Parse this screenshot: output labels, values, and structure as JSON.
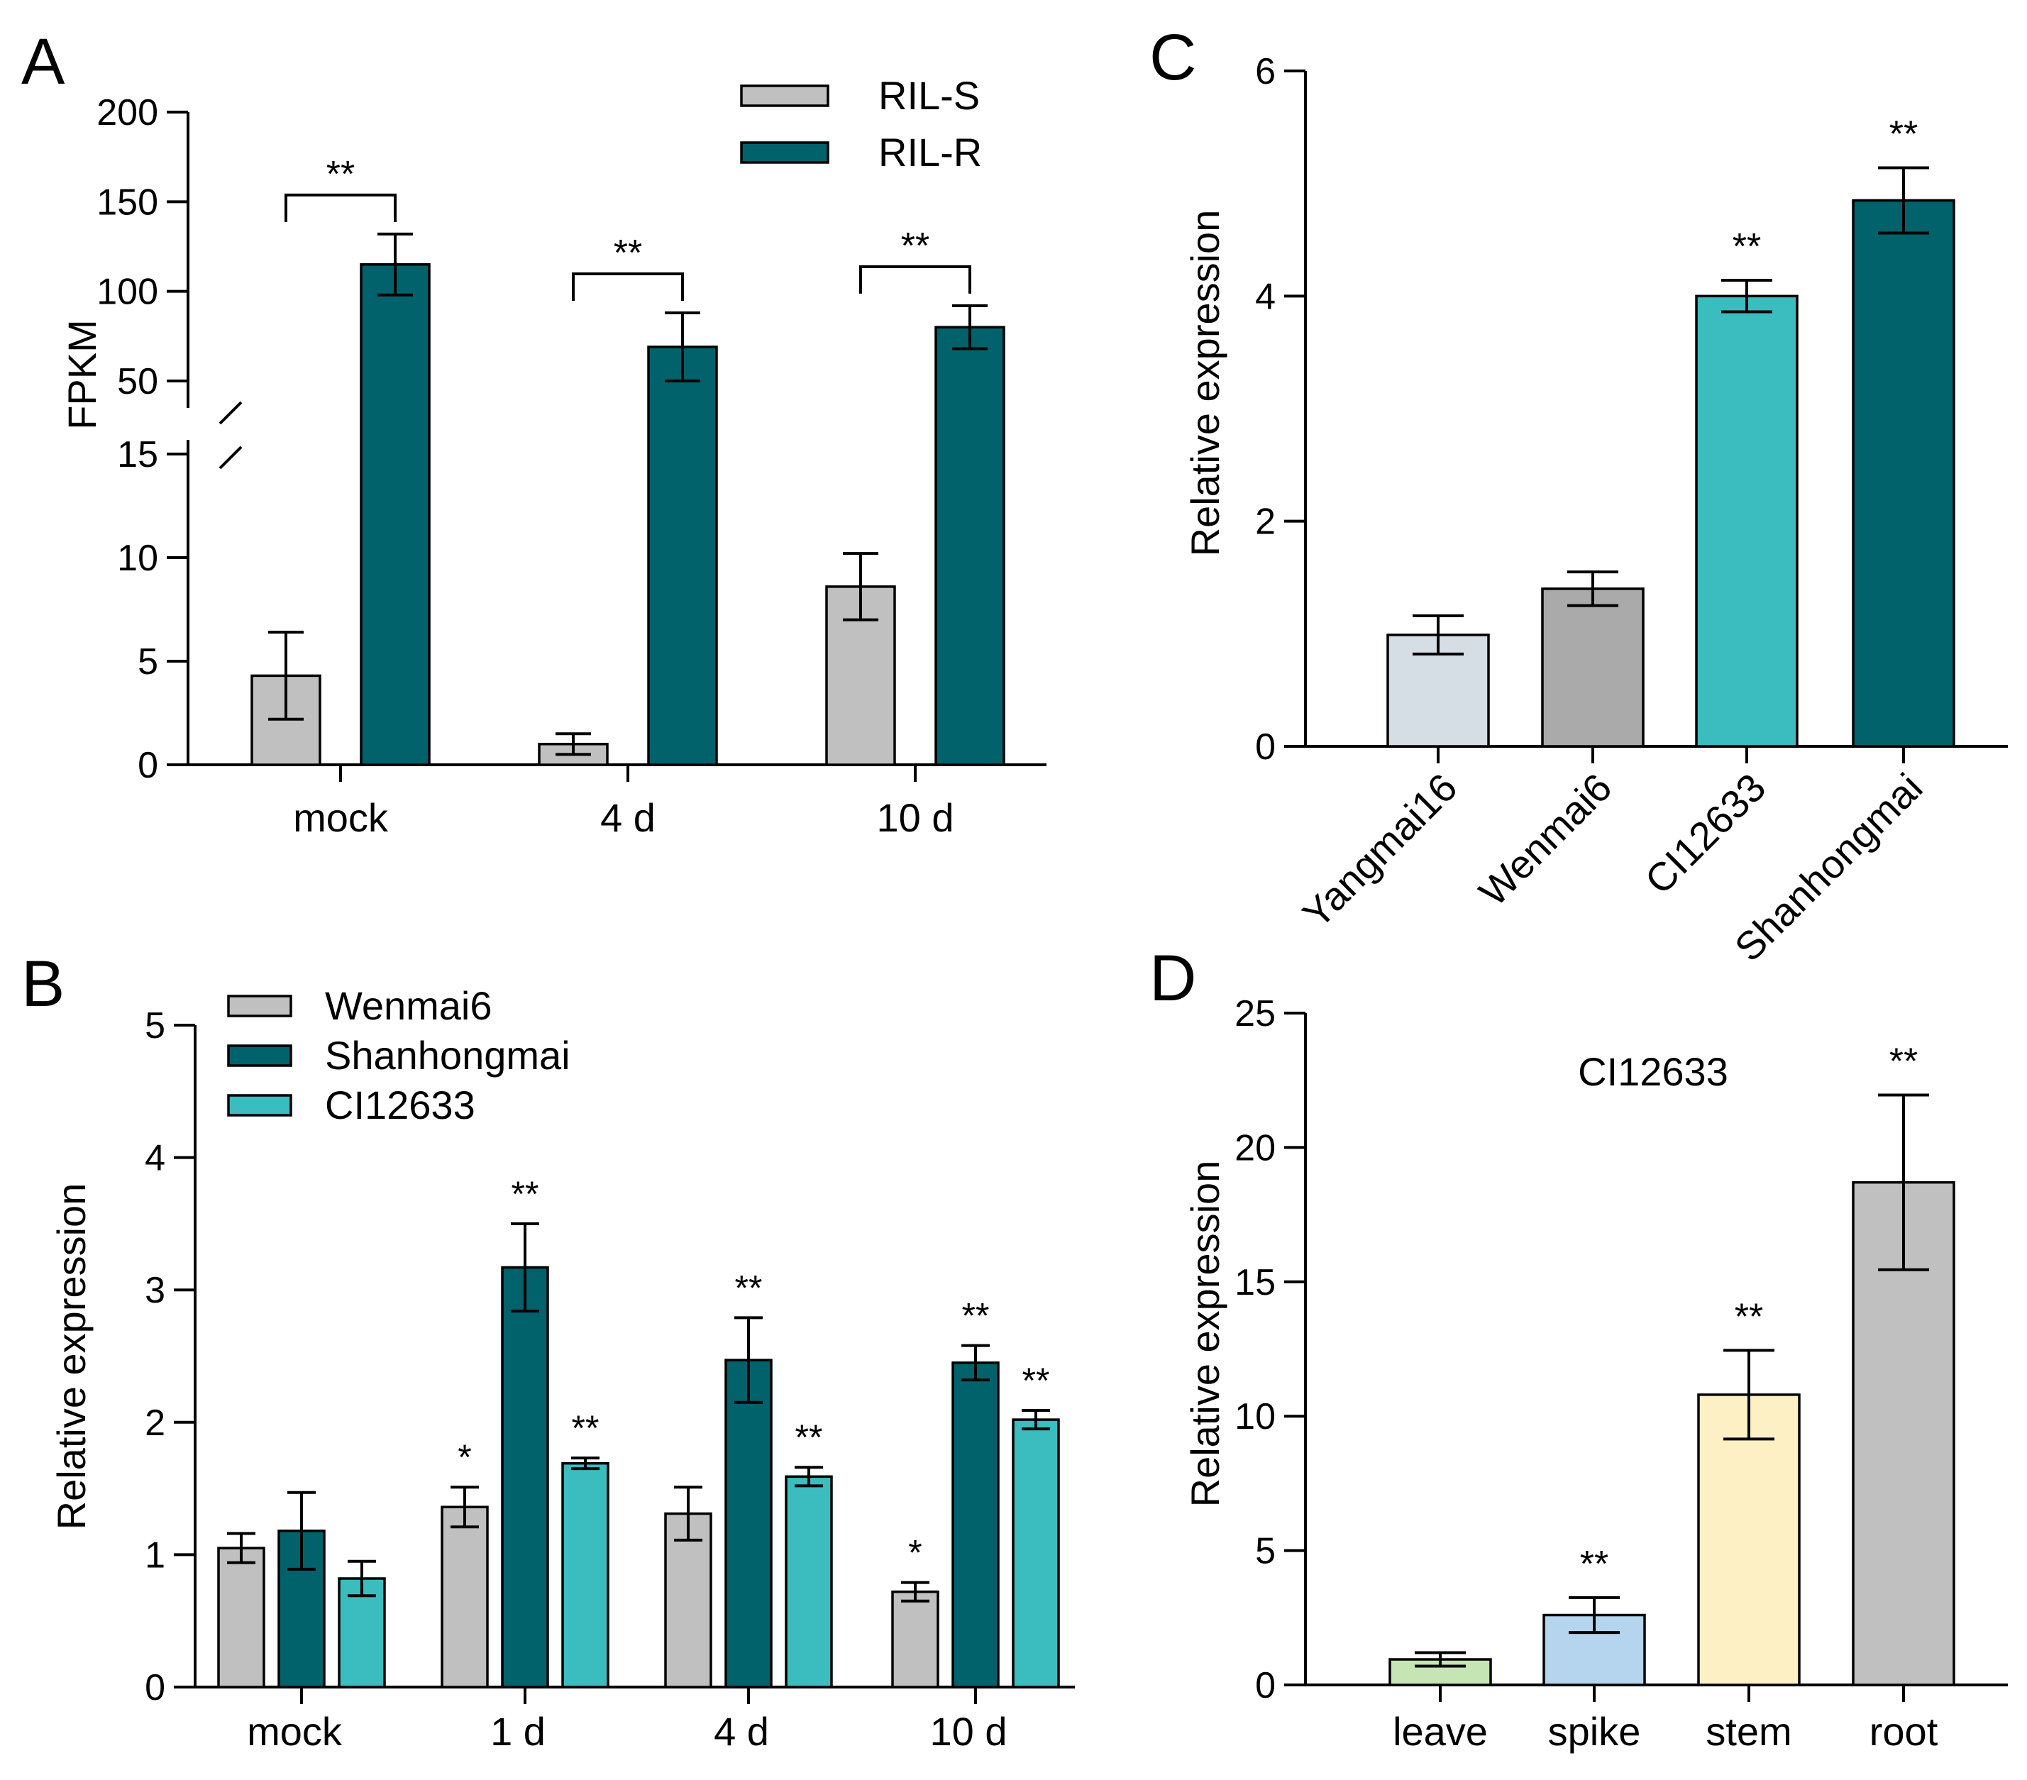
{
  "chart_data": [
    {
      "panel": "A",
      "type": "bar",
      "ylabel": "FPKM",
      "y_axis_break": {
        "lower_range": [
          0,
          15
        ],
        "upper_range": [
          50,
          200
        ]
      },
      "ticks_lower": [
        0,
        5,
        10,
        15
      ],
      "ticks_upper": [
        50,
        100,
        150,
        200
      ],
      "categories": [
        "mock",
        "4 d",
        "10 d"
      ],
      "series": [
        {
          "name": "RIL-S",
          "color": "#c0c0c0",
          "values": [
            4.3,
            1.0,
            8.6
          ],
          "errors": [
            2.1,
            0.5,
            1.6
          ]
        },
        {
          "name": "RIL-R",
          "color": "#01626b",
          "values": [
            115,
            69,
            80
          ],
          "errors": [
            17,
            19,
            12
          ]
        }
      ],
      "significance": [
        "**",
        "**",
        "**"
      ],
      "legend_position": "top-right"
    },
    {
      "panel": "B",
      "type": "bar",
      "ylabel": "Relative expression",
      "ylim": [
        0,
        5
      ],
      "yticks": [
        0,
        1,
        2,
        3,
        4,
        5
      ],
      "categories": [
        "mock",
        "1 d",
        "4 d",
        "10 d"
      ],
      "series": [
        {
          "name": "Wenmai6",
          "color": "#c0c0c0",
          "values": [
            1.05,
            1.36,
            1.31,
            0.72
          ],
          "errors": [
            0.11,
            0.15,
            0.2,
            0.07
          ],
          "marks": [
            "",
            "*",
            "",
            "*"
          ]
        },
        {
          "name": "Shanhongmai",
          "color": "#01626b",
          "values": [
            1.18,
            3.17,
            2.47,
            2.45
          ],
          "errors": [
            0.29,
            0.33,
            0.32,
            0.13
          ],
          "marks": [
            "",
            "**",
            "**",
            "**"
          ]
        },
        {
          "name": "CI12633",
          "color": "#3bbcbe",
          "values": [
            0.82,
            1.69,
            1.59,
            2.02
          ],
          "errors": [
            0.13,
            0.04,
            0.07,
            0.07
          ],
          "marks": [
            "",
            "**",
            "**",
            "**"
          ]
        }
      ],
      "legend_position": "top-left"
    },
    {
      "panel": "C",
      "type": "bar",
      "ylabel": "Relative expression",
      "ylim": [
        0,
        6
      ],
      "yticks": [
        0,
        2,
        4,
        6
      ],
      "categories": [
        "Yangmai16",
        "Wenmai6",
        "CI12633",
        "Shanhongmai"
      ],
      "colors": [
        "#d5dde5",
        "#aaaaaa",
        "#3bbcbe",
        "#01626b"
      ],
      "values": [
        0.99,
        1.4,
        4.0,
        4.85
      ],
      "errors": [
        0.17,
        0.15,
        0.14,
        0.29
      ],
      "marks": [
        "",
        "",
        "**",
        "**"
      ]
    },
    {
      "panel": "D",
      "type": "bar",
      "title": "CI12633",
      "ylabel": "Relative expression",
      "ylim": [
        0,
        25
      ],
      "yticks": [
        0,
        5,
        10,
        15,
        20,
        25
      ],
      "categories": [
        "leave",
        "spike",
        "stem",
        "root"
      ],
      "colors": [
        "#c5e5b4",
        "#b5d5ee",
        "#fdf0c4",
        "#c0c0c0"
      ],
      "values": [
        0.95,
        2.6,
        10.8,
        18.7
      ],
      "errors": [
        0.25,
        0.65,
        1.65,
        3.25
      ],
      "marks": [
        "",
        "**",
        "**",
        "**"
      ]
    }
  ],
  "panel_labels": [
    "A",
    "B",
    "C",
    "D"
  ]
}
